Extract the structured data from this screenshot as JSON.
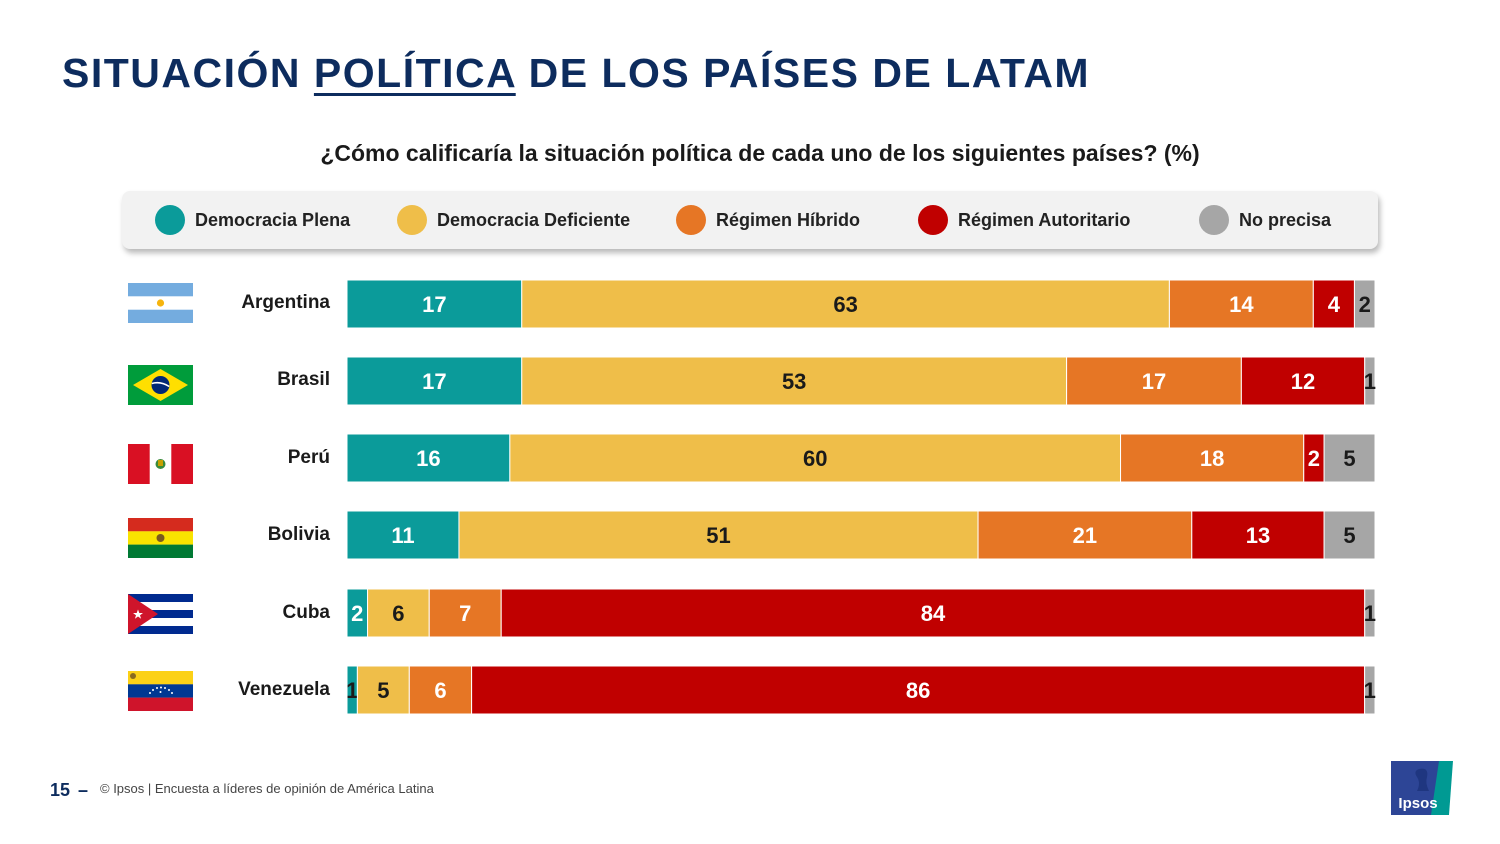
{
  "title": {
    "before": "SITUACIÓN ",
    "underlined": "POLÍTICA",
    "after": " DE LOS PAÍSES DE LATAM"
  },
  "subtitle": "¿Cómo calificaría la situación política de cada uno de los siguientes países? (%)",
  "legend": [
    {
      "label": "Democracia Plena",
      "color": "#0b9b9a"
    },
    {
      "label": "Democracia Deficiente",
      "color": "#efbe49"
    },
    {
      "label": "Régimen Híbrido",
      "color": "#e67625"
    },
    {
      "label": "Régimen Autoritario",
      "color": "#c00000"
    },
    {
      "label": "No precisa",
      "color": "#a6a6a6"
    }
  ],
  "rows": [
    {
      "label": "Argentina",
      "flag": "argentina-flag-icon"
    },
    {
      "label": "Brasil",
      "flag": "brazil-flag-icon"
    },
    {
      "label": "Perú",
      "flag": "peru-flag-icon"
    },
    {
      "label": "Bolivia",
      "flag": "bolivia-flag-icon"
    },
    {
      "label": "Cuba",
      "flag": "cuba-flag-icon"
    },
    {
      "label": "Venezuela",
      "flag": "venezuela-flag-icon"
    }
  ],
  "chart_data": {
    "type": "bar",
    "orientation": "horizontal",
    "stacked": true,
    "categories": [
      "Argentina",
      "Brasil",
      "Perú",
      "Bolivia",
      "Cuba",
      "Venezuela"
    ],
    "series": [
      {
        "name": "Democracia Plena",
        "color": "#0b9b9a",
        "values": [
          17,
          17,
          16,
          11,
          2,
          1
        ]
      },
      {
        "name": "Democracia Deficiente",
        "color": "#efbe49",
        "values": [
          63,
          53,
          60,
          51,
          6,
          5
        ]
      },
      {
        "name": "Régimen Híbrido",
        "color": "#e67625",
        "values": [
          14,
          17,
          18,
          21,
          7,
          6
        ]
      },
      {
        "name": "Régimen Autoritario",
        "color": "#c00000",
        "values": [
          4,
          12,
          2,
          13,
          84,
          86
        ]
      },
      {
        "name": "No precisa",
        "color": "#a6a6a6",
        "values": [
          2,
          1,
          5,
          5,
          1,
          1
        ]
      }
    ],
    "legend_position": "top",
    "grid": false
  },
  "footer": {
    "page": "15",
    "dash": "–",
    "text": "© Ipsos | Encuesta a líderes de opinión de América Latina"
  },
  "logo_text": "Ipsos"
}
